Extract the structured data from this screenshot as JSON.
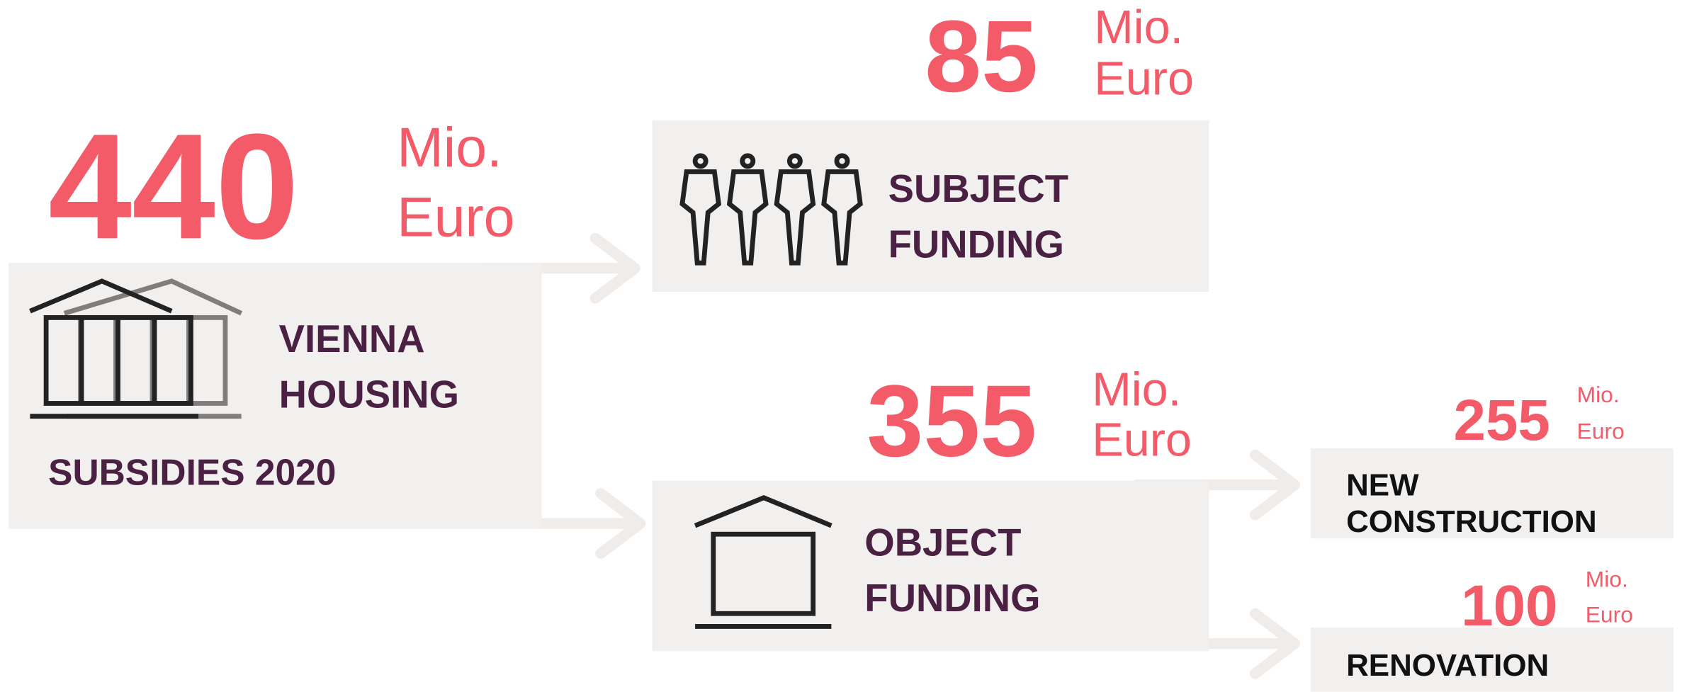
{
  "nodes": [
    {
      "amount": "440",
      "unit": [
        "Mio.",
        "Euro"
      ],
      "label": [
        "VIENNA",
        "HOUSING"
      ],
      "sublabel": "SUBSIDIES 2020"
    },
    {
      "amount": "85",
      "unit": [
        "Mio.",
        "Euro"
      ],
      "label": [
        "SUBJECT",
        "FUNDING"
      ]
    },
    {
      "amount": "355",
      "unit": [
        "Mio.",
        "Euro"
      ],
      "label": [
        "OBJECT",
        "FUNDING"
      ]
    },
    {
      "amount": "255",
      "unit": [
        "Mio.",
        "Euro"
      ],
      "label": [
        "NEW",
        "CONSTRUCTION"
      ]
    },
    {
      "amount": "100",
      "unit": [
        "Mio.",
        "Euro"
      ],
      "label": [
        "RENOVATION"
      ]
    }
  ]
}
